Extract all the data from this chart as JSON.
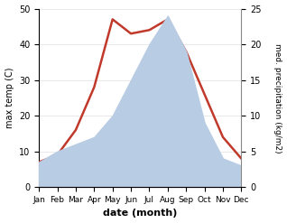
{
  "months": [
    "Jan",
    "Feb",
    "Mar",
    "Apr",
    "May",
    "Jun",
    "Jul",
    "Aug",
    "Sep",
    "Oct",
    "Nov",
    "Dec"
  ],
  "temperature": [
    7,
    9,
    16,
    28,
    47,
    43,
    44,
    47,
    38,
    26,
    14,
    8
  ],
  "precipitation": [
    3.5,
    5,
    6,
    7,
    10,
    15,
    20,
    24,
    19,
    9,
    4,
    3
  ],
  "temp_color": "#c0392b",
  "precip_fill_color": "#b8cce4",
  "ylabel_left": "max temp (C)",
  "ylabel_right": "med. precipitation (kg/m2)",
  "xlabel": "date (month)",
  "ylim_left": [
    0,
    50
  ],
  "ylim_right": [
    0,
    25
  ],
  "background_color": "#ffffff"
}
